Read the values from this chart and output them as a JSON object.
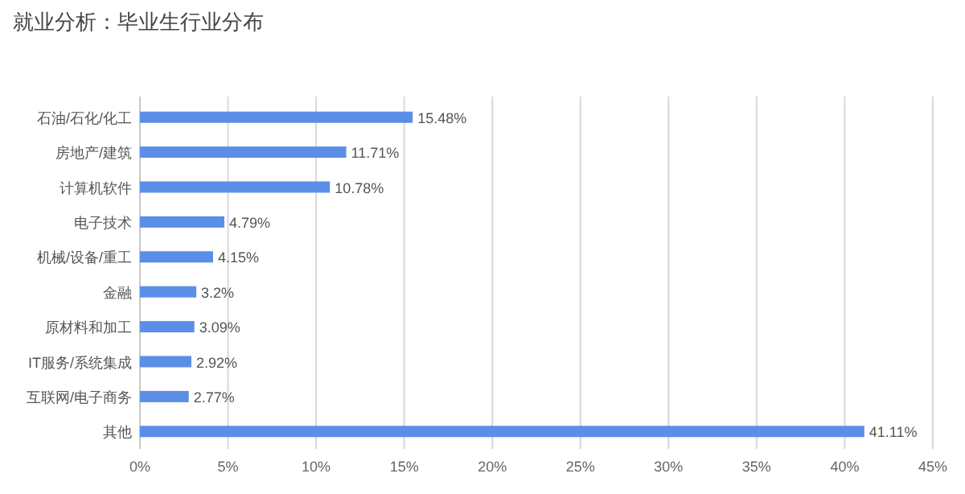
{
  "chart_data": {
    "type": "bar",
    "orientation": "horizontal",
    "title": "就业分析：毕业生行业分布",
    "categories": [
      "石油/石化/化工",
      "房地产/建筑",
      "计算机软件",
      "电子技术",
      "机械/设备/重工",
      "金融",
      "原材料和加工",
      "IT服务/系统集成",
      "互联网/电子商务",
      "其他"
    ],
    "values": [
      15.48,
      11.71,
      10.78,
      4.79,
      4.15,
      3.2,
      3.09,
      2.92,
      2.77,
      41.11
    ],
    "value_labels": [
      "15.48%",
      "11.71%",
      "10.78%",
      "4.79%",
      "4.15%",
      "3.2%",
      "3.09%",
      "2.92%",
      "2.77%",
      "41.11%"
    ],
    "color": "#5b8ee6",
    "xlim": [
      0,
      45
    ],
    "xticks": [
      {
        "value": 0,
        "label": "0%"
      },
      {
        "value": 5,
        "label": "5%"
      },
      {
        "value": 10,
        "label": "10%"
      },
      {
        "value": 15,
        "label": "15%"
      },
      {
        "value": 20,
        "label": "20%"
      },
      {
        "value": 25,
        "label": "25%"
      },
      {
        "value": 30,
        "label": "30%"
      },
      {
        "value": 35,
        "label": "35%"
      },
      {
        "value": 40,
        "label": "40%"
      },
      {
        "value": 45,
        "label": "45%"
      }
    ],
    "grid": "x"
  }
}
